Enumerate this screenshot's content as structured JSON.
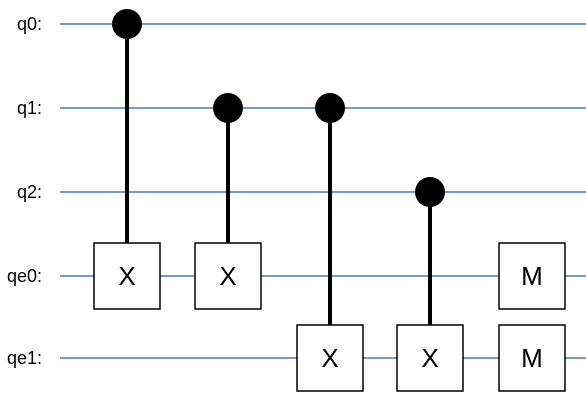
{
  "circuit": {
    "wires": [
      {
        "id": "q0",
        "label": "q0:"
      },
      {
        "id": "q1",
        "label": "q1:"
      },
      {
        "id": "q2",
        "label": "q2:"
      },
      {
        "id": "qe0",
        "label": "qe0:"
      },
      {
        "id": "qe1",
        "label": "qe1:"
      }
    ],
    "operations": [
      {
        "type": "cx",
        "control": "q0",
        "target": "qe0",
        "label": "X"
      },
      {
        "type": "cx",
        "control": "q1",
        "target": "qe0",
        "label": "X"
      },
      {
        "type": "cx",
        "control": "q1",
        "target": "qe1",
        "label": "X"
      },
      {
        "type": "cx",
        "control": "q2",
        "target": "qe1",
        "label": "X"
      },
      {
        "type": "measure",
        "target": "qe0",
        "label": "M"
      },
      {
        "type": "measure",
        "target": "qe1",
        "label": "M"
      }
    ]
  },
  "colors": {
    "wire": "#4a7ab5",
    "line": "#000000",
    "box_fill": "#ffffff",
    "box_stroke": "#000000",
    "control_dot": "#000000"
  }
}
